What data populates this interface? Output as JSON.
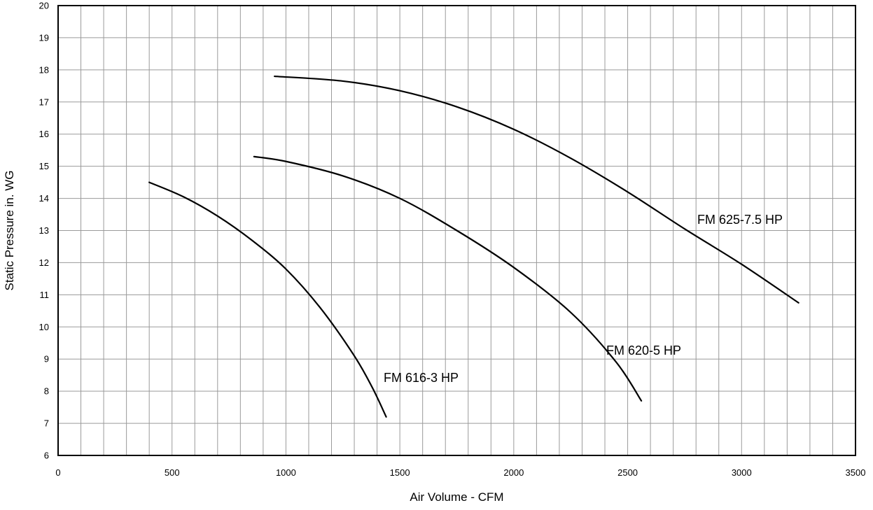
{
  "chart_data": {
    "type": "line",
    "title": "",
    "xlabel": "Air Volume - CFM",
    "ylabel": "Static Pressure in. WG",
    "xlim": [
      0,
      3500
    ],
    "ylim": [
      6,
      20
    ],
    "x_ticks": [
      0,
      500,
      1000,
      1500,
      2000,
      2500,
      3000,
      3500
    ],
    "y_ticks": [
      6,
      7,
      8,
      9,
      10,
      11,
      12,
      13,
      14,
      15,
      16,
      17,
      18,
      19,
      20
    ],
    "x_minor_step": 100,
    "y_minor_step": 1,
    "grid": true,
    "legend": "none",
    "series": [
      {
        "name": "FM 616-3 HP",
        "x": [
          400,
          550,
          700,
          850,
          1000,
          1150,
          1300,
          1380,
          1440
        ],
        "y": [
          14.5,
          14.05,
          13.45,
          12.7,
          11.8,
          10.6,
          9.1,
          8.1,
          7.2
        ]
      },
      {
        "name": "FM 620-5 HP",
        "x": [
          860,
          1000,
          1250,
          1500,
          1750,
          2000,
          2250,
          2450,
          2560
        ],
        "y": [
          15.3,
          15.15,
          14.7,
          14.0,
          13.0,
          11.85,
          10.45,
          8.9,
          7.7
        ]
      },
      {
        "name": "FM 625-7.5 HP",
        "x": [
          950,
          1250,
          1500,
          1750,
          2000,
          2250,
          2500,
          2750,
          3000,
          3250
        ],
        "y": [
          17.8,
          17.65,
          17.35,
          16.85,
          16.15,
          15.25,
          14.2,
          13.05,
          11.95,
          10.75
        ]
      }
    ],
    "annotations": [
      {
        "text": "FM 616-3 HP",
        "series": 0
      },
      {
        "text": "FM 620-5 HP",
        "series": 1
      },
      {
        "text": "FM 625-7.5 HP",
        "series": 2
      }
    ]
  }
}
